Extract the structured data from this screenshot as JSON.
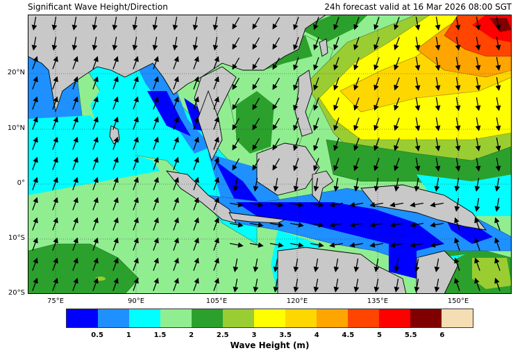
{
  "header": {
    "title": "Significant Wave Height/Direction",
    "forecast_label": "24h forecast valid at 16 Mar 2026 08:00 SGT"
  },
  "axes": {
    "lat_labels": [
      "20°N",
      "10°N",
      "0°",
      "10°S",
      "20°S"
    ],
    "lon_labels": [
      "75°E",
      "90°E",
      "105°E",
      "120°E",
      "135°E",
      "150°E"
    ]
  },
  "colorbar": {
    "title": "Wave Height (m)",
    "ticks": [
      "0.5",
      "1",
      "1.5",
      "2",
      "2.5",
      "3",
      "3.5",
      "4",
      "4.5",
      "5",
      "5.5",
      "6"
    ],
    "colors": [
      "#0000ff",
      "#1e90ff",
      "#00ffff",
      "#90ee90",
      "#2ca02c",
      "#9acd32",
      "#ffff00",
      "#ffd700",
      "#ffa500",
      "#ff4500",
      "#ff0000",
      "#800000",
      "#f5deb3"
    ]
  },
  "map": {
    "land_color": "#c8c8c8",
    "extent": {
      "lon_min": 70,
      "lon_max": 159,
      "lat_min": -20,
      "lat_max": 30
    },
    "regions": {
      "west_pacific_peak": "5.0–6.0 m near 25–30°N, 150–158°E",
      "south_china_sea": "2.0–2.5 m",
      "indian_ocean_south": "1.5–2.5 m",
      "indonesian_seas": "0.0–1.0 m"
    }
  }
}
